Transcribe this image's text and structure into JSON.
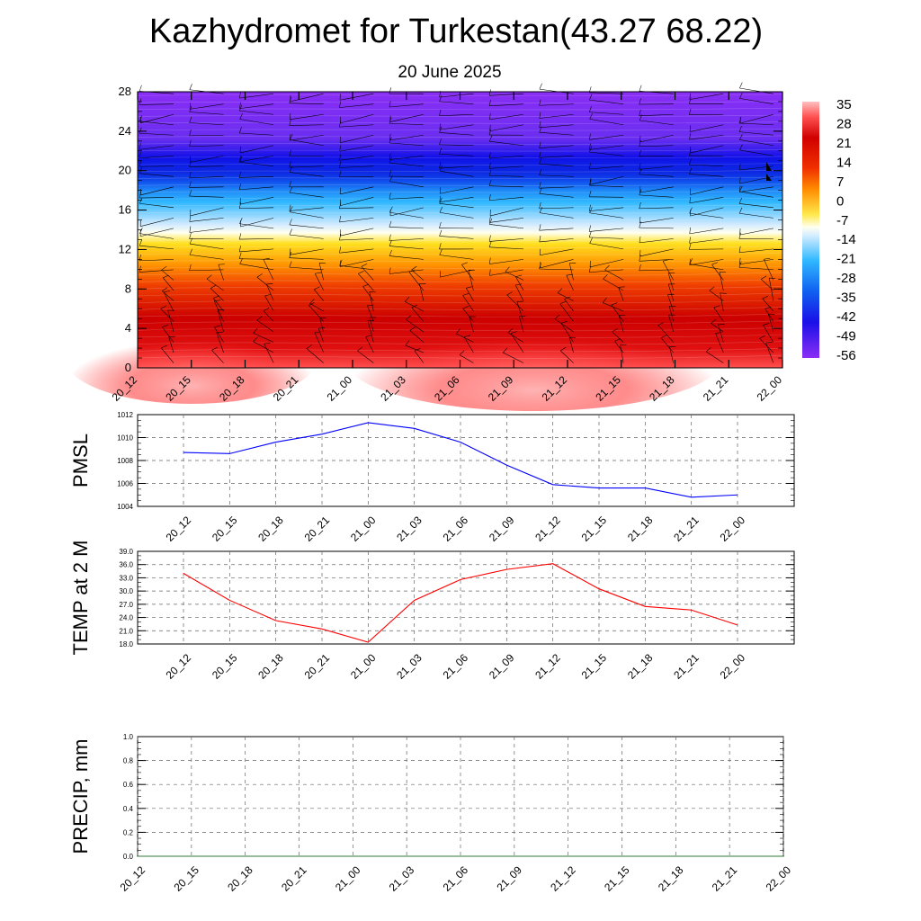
{
  "title": "Kazhydromet for Turkestan(43.27 68.22)",
  "subtitle": "20 June 2025",
  "chart_data": [
    {
      "type": "heatmap",
      "name": "cross-section",
      "xlabel": "",
      "ylabel": "",
      "x_tick_labels": [
        "20_12",
        "20_15",
        "20_18",
        "20_21",
        "21_00",
        "21_03",
        "21_06",
        "21_09",
        "21_12",
        "21_15",
        "21_18",
        "21_21",
        "22_00"
      ],
      "y_ticks": [
        0,
        4,
        8,
        12,
        16,
        20,
        24,
        28
      ],
      "ylim": [
        0,
        28
      ],
      "colorbar": {
        "labels": [
          "35",
          "28",
          "21",
          "14",
          "7",
          "0",
          "-7",
          "-14",
          "-21",
          "-28",
          "-35",
          "-42",
          "-49",
          "-56"
        ],
        "range": [
          -60,
          37
        ]
      },
      "temperature_profile": {
        "heights": [
          0,
          1,
          2,
          3,
          4,
          6,
          8,
          10,
          12,
          13,
          14,
          16,
          18,
          20,
          22,
          24,
          26,
          28
        ],
        "values": [
          32,
          30,
          27,
          25,
          24,
          20,
          14,
          7,
          -2,
          -6,
          -15,
          -28,
          -40,
          -52,
          -48,
          -46,
          -45,
          -45
        ]
      },
      "surface_warm_anomaly": [
        "20_12",
        "21_09"
      ]
    },
    {
      "type": "line",
      "name": "PMSL",
      "ylabel": "PMSL",
      "categories": [
        "20_12",
        "20_15",
        "20_18",
        "20_21",
        "21_00",
        "21_03",
        "21_06",
        "21_09",
        "21_12",
        "21_15",
        "21_18",
        "21_21",
        "22_00"
      ],
      "values": [
        1008.7,
        1008.6,
        1009.6,
        1010.3,
        1011.3,
        1010.8,
        1009.6,
        1007.6,
        1005.9,
        1005.6,
        1005.6,
        1004.8,
        1005.0
      ],
      "ylim": [
        1004,
        1012
      ],
      "y_ticks": [
        1004,
        1006,
        1008,
        1010,
        1012
      ],
      "y_tick_labels": [
        "1004",
        "1006",
        "1008",
        "1010",
        "1012"
      ],
      "color": "#0000ff",
      "grid": true
    },
    {
      "type": "line",
      "name": "TEMP",
      "ylabel": "TEMP at 2 M",
      "categories": [
        "20_12",
        "20_15",
        "20_18",
        "20_21",
        "21_00",
        "21_03",
        "21_06",
        "21_09",
        "21_12",
        "21_15",
        "21_18",
        "21_21",
        "22_00"
      ],
      "values": [
        34.0,
        27.9,
        23.3,
        21.4,
        18.4,
        27.9,
        32.6,
        34.9,
        36.2,
        30.5,
        26.5,
        25.7,
        22.3
      ],
      "ylim": [
        18,
        39
      ],
      "y_ticks": [
        18,
        21,
        24,
        27,
        30,
        33,
        36,
        39
      ],
      "y_tick_labels": [
        "18.0",
        "21.0",
        "24.0",
        "27.0",
        "30.0",
        "33.0",
        "36.0",
        "39.0"
      ],
      "color": "#ff0000",
      "grid": true
    },
    {
      "type": "line",
      "name": "PRECIP",
      "ylabel": "PRECIP, mm",
      "categories": [
        "20_12",
        "20_15",
        "20_18",
        "20_21",
        "21_00",
        "21_03",
        "21_06",
        "21_09",
        "21_12",
        "21_15",
        "21_18",
        "21_21",
        "22_00"
      ],
      "values": [
        0,
        0,
        0,
        0,
        0,
        0,
        0,
        0,
        0,
        0,
        0,
        0,
        0
      ],
      "ylim": [
        0,
        1
      ],
      "y_ticks": [
        0,
        0.2,
        0.4,
        0.6,
        0.8,
        1.0
      ],
      "y_tick_labels": [
        "0.0",
        "0.2",
        "0.4",
        "0.6",
        "0.8",
        "1.0"
      ],
      "color": "#2e7d32",
      "grid": true
    }
  ]
}
